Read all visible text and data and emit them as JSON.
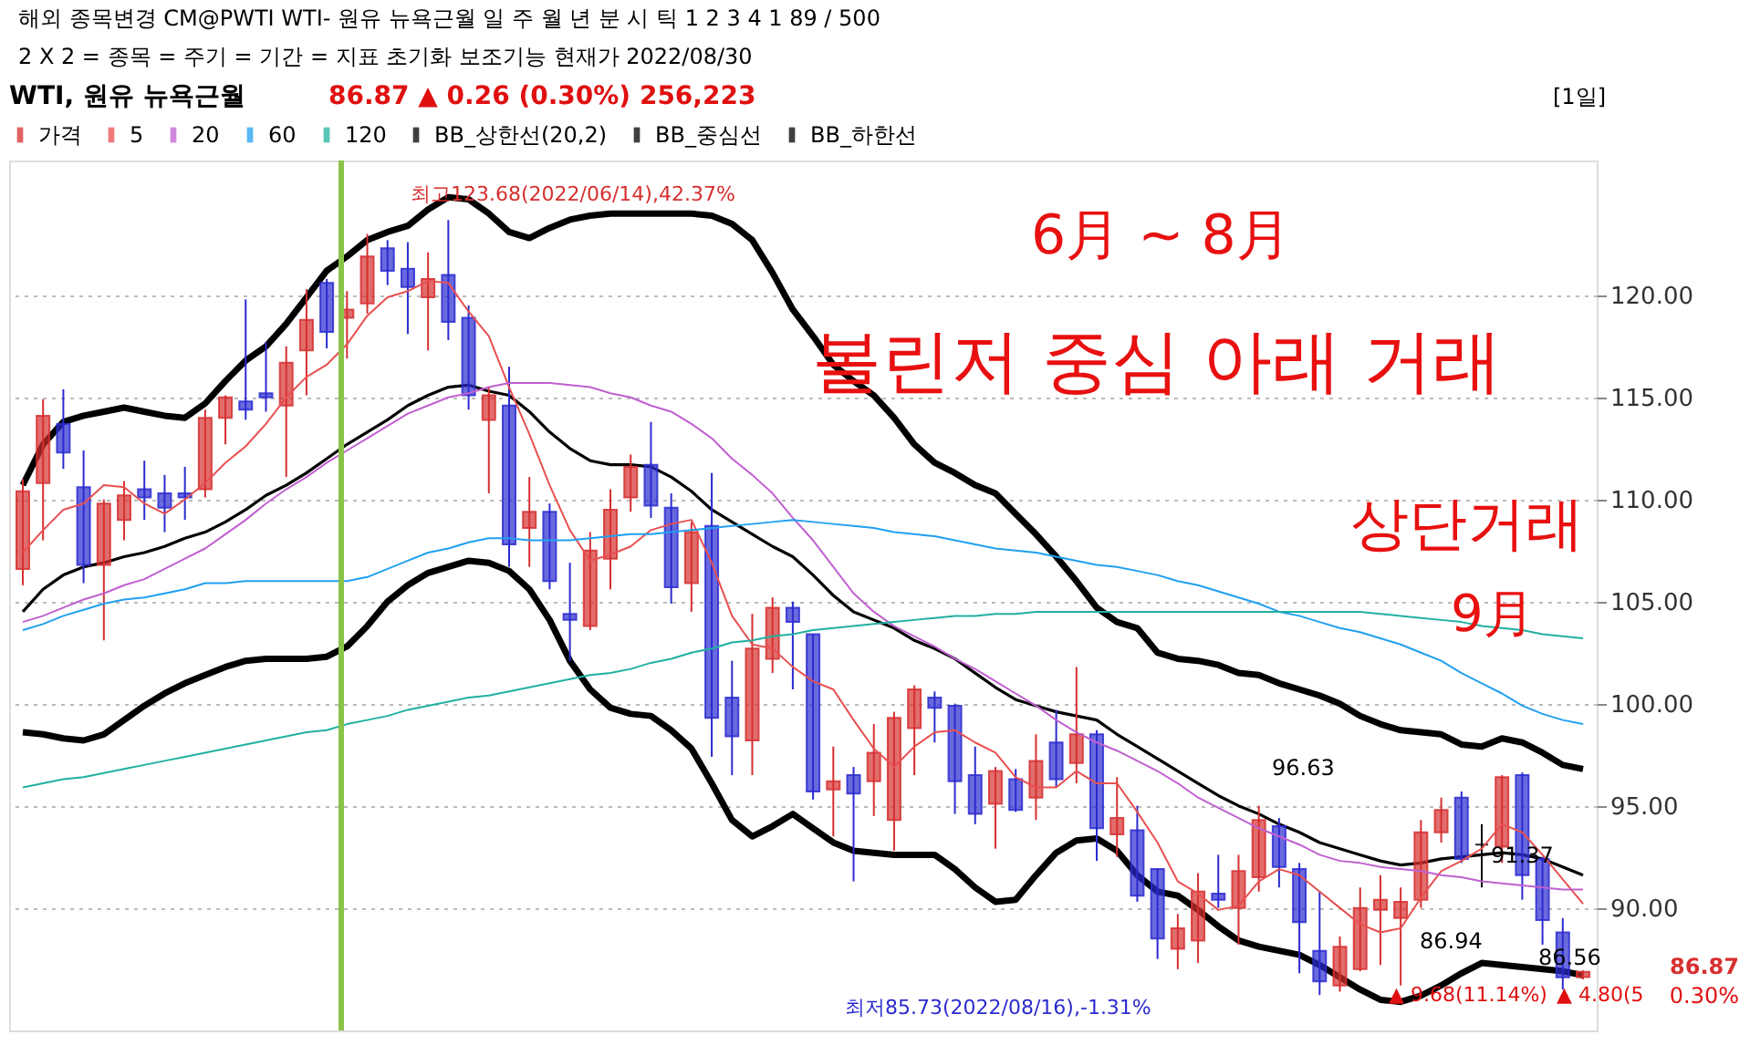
{
  "chart_data": {
    "type": "candlestick",
    "title": "WTI, 원유 뉴욕근월",
    "subtitle": "86.87 ▲ 0.26 (0.30%)   256,223",
    "categories": [
      null,
      null,
      null,
      null,
      null,
      null,
      null,
      null,
      null,
      null,
      null,
      null,
      null,
      null,
      null,
      null,
      null,
      null,
      null,
      null,
      null,
      null,
      null,
      null,
      null,
      null,
      null,
      null,
      null,
      null,
      null,
      null,
      null,
      null,
      null,
      null,
      null,
      null,
      null,
      null,
      null,
      null,
      null,
      null,
      null,
      null,
      null,
      null,
      null,
      null,
      null,
      null,
      null,
      null,
      null,
      null,
      null,
      null,
      null,
      null,
      null,
      null,
      null,
      null,
      null,
      null,
      null,
      null,
      null,
      null,
      null,
      null,
      null,
      null,
      null,
      null,
      null,
      null
    ],
    "series": [
      {
        "name": "가격",
        "color": "#d62f2f",
        "ohlc": [
          [
            106.6,
            111.0,
            105.8,
            110.4
          ],
          [
            110.8,
            114.9,
            108.0,
            114.1
          ],
          [
            113.7,
            115.4,
            111.5,
            112.3
          ],
          [
            110.6,
            112.4,
            105.9,
            106.8
          ],
          [
            106.8,
            110.0,
            103.1,
            109.8
          ],
          [
            109.0,
            110.9,
            108.0,
            110.2
          ],
          [
            110.5,
            111.9,
            109.0,
            110.1
          ],
          [
            110.3,
            111.2,
            108.4,
            109.6
          ],
          [
            110.3,
            111.6,
            109.0,
            110.1
          ],
          [
            110.5,
            114.4,
            110.1,
            114.0
          ],
          [
            114.0,
            115.1,
            112.7,
            115.0
          ],
          [
            114.8,
            119.8,
            113.9,
            114.4
          ],
          [
            115.2,
            117.7,
            114.3,
            115.0
          ],
          [
            114.6,
            117.5,
            111.1,
            116.7
          ],
          [
            117.3,
            120.3,
            115.1,
            118.8
          ],
          [
            120.6,
            120.8,
            117.4,
            118.2
          ],
          [
            118.9,
            120.2,
            116.9,
            119.3
          ],
          [
            119.6,
            123.0,
            119.1,
            121.9
          ],
          [
            122.3,
            122.7,
            120.5,
            121.2
          ],
          [
            121.3,
            122.6,
            118.1,
            120.4
          ],
          [
            119.9,
            122.1,
            117.3,
            120.8
          ],
          [
            121.0,
            123.68,
            117.8,
            118.7
          ],
          [
            118.9,
            119.5,
            114.4,
            115.1
          ],
          [
            113.9,
            115.5,
            110.3,
            115.1
          ],
          [
            114.6,
            116.5,
            106.7,
            107.8
          ],
          [
            108.6,
            111.1,
            106.7,
            109.4
          ],
          [
            109.4,
            109.8,
            105.6,
            106.0
          ],
          [
            104.4,
            106.9,
            102.1,
            104.1
          ],
          [
            103.8,
            108.4,
            103.6,
            107.5
          ],
          [
            107.1,
            110.5,
            105.6,
            109.5
          ],
          [
            110.1,
            112.2,
            109.4,
            111.6
          ],
          [
            111.7,
            113.8,
            109.1,
            109.7
          ],
          [
            109.6,
            110.3,
            104.9,
            105.7
          ],
          [
            105.9,
            108.9,
            104.5,
            108.4
          ],
          [
            108.7,
            111.3,
            97.4,
            99.3
          ],
          [
            100.3,
            102.1,
            96.5,
            98.4
          ],
          [
            98.2,
            104.4,
            96.5,
            102.7
          ],
          [
            102.2,
            105.2,
            101.5,
            104.7
          ],
          [
            104.7,
            105.0,
            100.7,
            104.0
          ],
          [
            103.4,
            103.4,
            95.3,
            95.7
          ],
          [
            95.8,
            97.9,
            93.5,
            96.2
          ],
          [
            96.5,
            96.9,
            91.3,
            95.6
          ],
          [
            96.2,
            99.0,
            94.5,
            97.6
          ],
          [
            94.3,
            99.6,
            92.8,
            99.3
          ],
          [
            98.8,
            100.9,
            96.5,
            100.7
          ],
          [
            100.3,
            100.6,
            98.1,
            99.8
          ],
          [
            99.9,
            100.0,
            94.6,
            96.2
          ],
          [
            96.5,
            97.9,
            94.1,
            94.6
          ],
          [
            95.1,
            96.9,
            92.9,
            96.7
          ],
          [
            96.3,
            96.8,
            94.7,
            94.8
          ],
          [
            95.4,
            98.5,
            94.3,
            97.2
          ],
          [
            98.1,
            99.7,
            95.9,
            96.3
          ],
          [
            97.1,
            101.8,
            96.1,
            98.5
          ],
          [
            98.5,
            98.7,
            92.3,
            93.9
          ],
          [
            93.6,
            96.4,
            92.5,
            94.4
          ],
          [
            93.8,
            95.0,
            90.3,
            90.6
          ],
          [
            91.9,
            91.9,
            87.5,
            88.5
          ],
          [
            88.0,
            89.7,
            87.0,
            89.0
          ],
          [
            88.4,
            91.7,
            87.3,
            90.8
          ],
          [
            90.7,
            92.6,
            90.0,
            90.4
          ],
          [
            90.0,
            92.6,
            88.2,
            91.8
          ],
          [
            91.5,
            95.0,
            90.8,
            94.3
          ],
          [
            94.0,
            94.4,
            91.0,
            92.0
          ],
          [
            91.9,
            92.2,
            86.8,
            89.3
          ],
          [
            87.9,
            90.8,
            85.73,
            86.4
          ],
          [
            86.2,
            88.6,
            85.9,
            88.1
          ],
          [
            87.0,
            91.0,
            86.9,
            90.0
          ],
          [
            89.9,
            91.6,
            87.2,
            90.4
          ],
          [
            89.5,
            91.0,
            86.2,
            90.3
          ],
          [
            90.4,
            94.3,
            90.0,
            93.7
          ],
          [
            93.7,
            95.4,
            93.2,
            94.8
          ],
          [
            95.4,
            95.7,
            92.2,
            92.4
          ],
          [
            93.1,
            94.1,
            91.0,
            93.1
          ],
          [
            93.0,
            96.5,
            92.2,
            96.4
          ],
          [
            96.5,
            96.63,
            90.4,
            91.6
          ],
          [
            92.4,
            92.5,
            88.2,
            89.4
          ],
          [
            88.8,
            89.5,
            86.0,
            86.6
          ],
          [
            86.61,
            86.94,
            86.5,
            86.87
          ]
        ],
        "colors": [
          "#d62f2f",
          "#d62f2f",
          "#2b2bd0",
          "#2b2bd0",
          "#d62f2f",
          "#d62f2f",
          "#2b2bd0",
          "#2b2bd0",
          "#2b2bd0",
          "#d62f2f",
          "#d62f2f",
          "#2b2bd0",
          "#2b2bd0",
          "#d62f2f",
          "#d62f2f",
          "#2b2bd0",
          "#d62f2f",
          "#d62f2f",
          "#2b2bd0",
          "#2b2bd0",
          "#d62f2f",
          "#2b2bd0",
          "#2b2bd0",
          "#d62f2f",
          "#2b2bd0",
          "#d62f2f",
          "#2b2bd0",
          "#2b2bd0",
          "#d62f2f",
          "#d62f2f",
          "#d62f2f",
          "#2b2bd0",
          "#2b2bd0",
          "#d62f2f",
          "#2b2bd0",
          "#2b2bd0",
          "#d62f2f",
          "#d62f2f",
          "#2b2bd0",
          "#2b2bd0",
          "#d62f2f",
          "#2b2bd0",
          "#d62f2f",
          "#d62f2f",
          "#d62f2f",
          "#2b2bd0",
          "#2b2bd0",
          "#2b2bd0",
          "#d62f2f",
          "#2b2bd0",
          "#d62f2f",
          "#2b2bd0",
          "#d62f2f",
          "#2b2bd0",
          "#d62f2f",
          "#2b2bd0",
          "#2b2bd0",
          "#d62f2f",
          "#d62f2f",
          "#2b2bd0",
          "#d62f2f",
          "#d62f2f",
          "#2b2bd0",
          "#2b2bd0",
          "#2b2bd0",
          "#d62f2f",
          "#d62f2f",
          "#d62f2f",
          "#d62f2f",
          "#d62f2f",
          "#d62f2f",
          "#2b2bd0",
          "#000000",
          "#d62f2f",
          "#2b2bd0",
          "#2b2bd0",
          "#2b2bd0",
          "#d62f2f"
        ]
      },
      {
        "name": "5",
        "type": "line",
        "color": "#e85050",
        "values": [
          107.4,
          108.5,
          109.5,
          109.8,
          110.7,
          110.6,
          109.8,
          109.3,
          110.0,
          110.8,
          111.8,
          112.6,
          113.7,
          115.0,
          116.0,
          116.6,
          117.6,
          119.0,
          119.9,
          120.2,
          120.7,
          120.6,
          119.2,
          118.0,
          115.5,
          113.2,
          110.7,
          108.5,
          107.0,
          107.3,
          107.7,
          108.5,
          108.8,
          109.0,
          106.9,
          104.3,
          102.9,
          102.7,
          101.8,
          101.1,
          100.7,
          99.2,
          97.8,
          96.9,
          97.9,
          98.6,
          98.7,
          98.1,
          97.6,
          96.4,
          95.9,
          95.9,
          96.7,
          96.1,
          96.1,
          94.7,
          93.2,
          91.3,
          90.7,
          89.9,
          90.1,
          91.3,
          91.9,
          91.6,
          90.8,
          90.0,
          89.2,
          88.8,
          89.0,
          90.5,
          91.8,
          92.3,
          92.9,
          94.1,
          93.7,
          92.6,
          91.4,
          90.2
        ]
      },
      {
        "name": "20",
        "type": "line",
        "color": "#c060d0",
        "values": [
          104.0,
          104.3,
          104.7,
          105.1,
          105.4,
          105.8,
          106.1,
          106.6,
          107.1,
          107.6,
          108.3,
          109.0,
          109.8,
          110.5,
          111.1,
          111.8,
          112.4,
          113.0,
          113.6,
          114.2,
          114.6,
          115.0,
          115.2,
          115.5,
          115.7,
          115.7,
          115.7,
          115.6,
          115.5,
          115.2,
          115.0,
          114.6,
          114.3,
          113.7,
          113.0,
          112.0,
          111.2,
          110.3,
          109.1,
          108.0,
          106.7,
          105.4,
          104.5,
          103.8,
          103.3,
          102.8,
          102.2,
          101.7,
          101.1,
          100.5,
          99.9,
          99.2,
          98.6,
          98.1,
          97.7,
          97.2,
          96.7,
          96.1,
          95.4,
          94.9,
          94.4,
          93.9,
          93.5,
          93.1,
          92.6,
          92.3,
          92.2,
          92.0,
          91.9,
          91.8,
          91.6,
          91.5,
          91.3,
          91.2,
          91.1,
          91.0,
          90.9,
          90.9
        ]
      },
      {
        "name": "60",
        "type": "line",
        "color": "#20a0f0",
        "values": [
          103.6,
          103.9,
          104.3,
          104.6,
          104.9,
          105.1,
          105.2,
          105.4,
          105.6,
          105.9,
          105.9,
          106.0,
          106.0,
          106.0,
          106.0,
          106.0,
          106.0,
          106.2,
          106.6,
          107.0,
          107.4,
          107.6,
          107.9,
          108.1,
          108.1,
          108.0,
          108.0,
          108.0,
          108.1,
          108.2,
          108.3,
          108.3,
          108.4,
          108.5,
          108.6,
          108.7,
          108.8,
          108.9,
          109.0,
          108.9,
          108.8,
          108.7,
          108.6,
          108.4,
          108.3,
          108.2,
          108.0,
          107.8,
          107.6,
          107.5,
          107.4,
          107.2,
          107.0,
          106.8,
          106.7,
          106.5,
          106.3,
          106.0,
          105.8,
          105.5,
          105.2,
          104.9,
          104.5,
          104.3,
          104.0,
          103.7,
          103.5,
          103.2,
          102.9,
          102.5,
          102.1,
          101.5,
          101.0,
          100.5,
          99.9,
          99.5,
          99.2,
          99.0
        ]
      },
      {
        "name": "120",
        "type": "line",
        "color": "#20b0a0",
        "values": [
          95.9,
          96.1,
          96.3,
          96.4,
          96.6,
          96.8,
          97.0,
          97.2,
          97.4,
          97.6,
          97.8,
          98.0,
          98.2,
          98.4,
          98.6,
          98.7,
          99.0,
          99.2,
          99.4,
          99.7,
          99.9,
          100.1,
          100.3,
          100.4,
          100.6,
          100.8,
          101.0,
          101.2,
          101.4,
          101.5,
          101.7,
          102.0,
          102.2,
          102.5,
          102.7,
          103.0,
          103.1,
          103.3,
          103.4,
          103.6,
          103.7,
          103.8,
          103.9,
          104.0,
          104.1,
          104.2,
          104.3,
          104.3,
          104.4,
          104.4,
          104.5,
          104.5,
          104.5,
          104.5,
          104.5,
          104.5,
          104.5,
          104.5,
          104.5,
          104.5,
          104.5,
          104.5,
          104.5,
          104.5,
          104.5,
          104.5,
          104.5,
          104.4,
          104.3,
          104.2,
          104.1,
          104.0,
          103.8,
          103.7,
          103.6,
          103.4,
          103.3,
          103.2
        ]
      },
      {
        "name": "BB_상한선(20,2)",
        "type": "line",
        "color": "#000000",
        "values": [
          110.7,
          112.7,
          113.8,
          114.1,
          114.3,
          114.5,
          114.3,
          114.1,
          114.0,
          114.7,
          115.8,
          116.8,
          117.5,
          118.6,
          119.9,
          121.2,
          121.9,
          122.7,
          123.1,
          123.4,
          124.2,
          124.8,
          124.7,
          124.0,
          123.1,
          122.8,
          123.3,
          123.7,
          123.9,
          124.0,
          124.0,
          124.0,
          124.0,
          124.0,
          123.9,
          123.5,
          122.7,
          121.1,
          119.3,
          118.0,
          116.6,
          115.8,
          115.1,
          114.0,
          112.7,
          111.8,
          111.3,
          110.7,
          110.3,
          109.3,
          108.3,
          107.2,
          106.0,
          104.7,
          104.0,
          103.7,
          102.5,
          102.2,
          102.1,
          101.9,
          101.5,
          101.4,
          101.0,
          100.7,
          100.4,
          100.0,
          99.4,
          99.0,
          98.7,
          98.6,
          98.5,
          98.0,
          97.9,
          98.3,
          98.1,
          97.6,
          97.0,
          96.8
        ]
      },
      {
        "name": "BB_중심선",
        "type": "line",
        "color": "#000000",
        "values": [
          104.5,
          105.6,
          106.3,
          106.7,
          106.9,
          107.2,
          107.4,
          107.7,
          108.1,
          108.4,
          108.9,
          109.5,
          110.2,
          110.7,
          111.3,
          112.0,
          112.7,
          113.3,
          113.9,
          114.6,
          115.1,
          115.5,
          115.6,
          115.3,
          115.1,
          114.3,
          113.3,
          112.5,
          111.9,
          111.7,
          111.7,
          111.6,
          111.1,
          110.4,
          109.5,
          108.9,
          108.3,
          107.7,
          107.2,
          106.3,
          105.3,
          104.5,
          104.1,
          103.7,
          103.1,
          102.7,
          102.2,
          101.5,
          100.8,
          100.2,
          99.9,
          99.6,
          99.4,
          99.2,
          98.5,
          97.9,
          97.3,
          96.7,
          96.1,
          95.5,
          95.0,
          94.6,
          94.1,
          93.7,
          93.2,
          92.9,
          92.6,
          92.3,
          92.1,
          92.2,
          92.4,
          92.5,
          92.6,
          92.7,
          92.6,
          92.4,
          92.0,
          91.6
        ]
      },
      {
        "name": "BB_하한선",
        "type": "line",
        "color": "#000000",
        "values": [
          98.6,
          98.5,
          98.3,
          98.2,
          98.5,
          99.2,
          99.9,
          100.5,
          101.0,
          101.4,
          101.8,
          102.1,
          102.2,
          102.2,
          102.2,
          102.3,
          102.8,
          103.8,
          105.0,
          105.8,
          106.4,
          106.7,
          107.0,
          106.9,
          106.5,
          105.6,
          104.1,
          102.1,
          100.7,
          99.8,
          99.5,
          99.4,
          98.7,
          97.8,
          96.1,
          94.3,
          93.5,
          94.0,
          94.6,
          93.9,
          93.2,
          92.8,
          92.7,
          92.6,
          92.6,
          92.6,
          91.9,
          91.0,
          90.3,
          90.4,
          91.6,
          92.7,
          93.3,
          93.4,
          92.8,
          91.6,
          90.8,
          90.6,
          89.9,
          89.1,
          88.4,
          88.1,
          87.9,
          87.7,
          87.2,
          86.6,
          86.0,
          85.5,
          85.4,
          85.7,
          86.2,
          86.8,
          87.3,
          87.2,
          87.1,
          87.0,
          86.9,
          86.7
        ]
      }
    ],
    "ylim": [
      84,
      126.6
    ],
    "yticks": [
      {
        "value": 90,
        "label": "90.00"
      },
      {
        "value": 95,
        "label": "95.00"
      },
      {
        "value": 100,
        "label": "100.00"
      },
      {
        "value": 105,
        "label": "105.00"
      },
      {
        "value": 110,
        "label": "110.00"
      },
      {
        "value": 115,
        "label": "115.00"
      },
      {
        "value": 120,
        "label": "120.00"
      }
    ],
    "tick_labels": "y",
    "grid": "y",
    "legend": "top",
    "annotations": [
      "해외   종목변경   CM@PWTI   WTI- 원유 뉴욕근월   일 주 월 년 분 시 틱   1 2 3 4 1   89 / 500",
      "2 X 2   = 종목   = 주기   = 기간   = 지표   초기화   보조기능   현재가   2022/08/30",
      "[1일]",
      "최고123.68(2022/06/14),42.37%",
      "최저85.73(2022/08/16),-1.31%",
      "96.63",
      "91.37",
      "86.94",
      "86.56",
      "▲ 9.68(11.14%)",
      "▲ 4.80(5",
      "86.87",
      "0.30%",
      "6月 ~ 8月",
      "볼린저 중심 아래 거래",
      "상단거래",
      "9月"
    ]
  }
}
